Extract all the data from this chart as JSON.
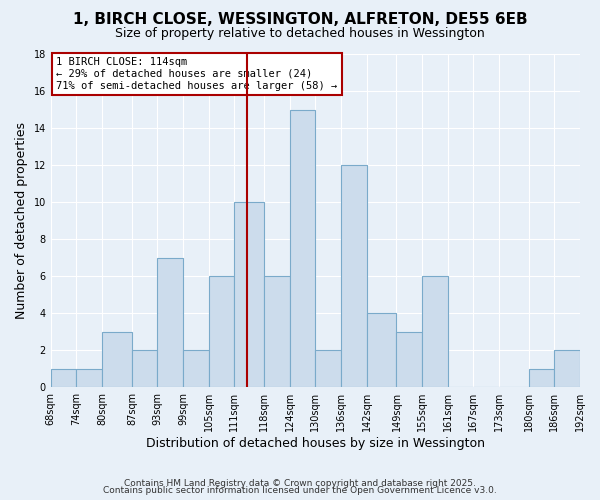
{
  "title": "1, BIRCH CLOSE, WESSINGTON, ALFRETON, DE55 6EB",
  "subtitle": "Size of property relative to detached houses in Wessington",
  "xlabel": "Distribution of detached houses by size in Wessington",
  "ylabel": "Number of detached properties",
  "bar_color": "#ccdcec",
  "bar_edgecolor": "#7aaaca",
  "background_color": "#e8f0f8",
  "grid_color": "#ffffff",
  "bins": [
    68,
    74,
    80,
    87,
    93,
    99,
    105,
    111,
    118,
    124,
    130,
    136,
    142,
    149,
    155,
    161,
    167,
    173,
    180,
    186,
    192
  ],
  "counts": [
    1,
    1,
    3,
    2,
    7,
    2,
    6,
    10,
    6,
    15,
    2,
    12,
    4,
    3,
    6,
    0,
    0,
    0,
    1,
    2
  ],
  "tick_labels": [
    "68sqm",
    "74sqm",
    "80sqm",
    "87sqm",
    "93sqm",
    "99sqm",
    "105sqm",
    "111sqm",
    "118sqm",
    "124sqm",
    "130sqm",
    "136sqm",
    "142sqm",
    "149sqm",
    "155sqm",
    "161sqm",
    "167sqm",
    "173sqm",
    "180sqm",
    "186sqm",
    "192sqm"
  ],
  "vline_x": 114,
  "vline_color": "#aa0000",
  "annotation_title": "1 BIRCH CLOSE: 114sqm",
  "annotation_line2": "← 29% of detached houses are smaller (24)",
  "annotation_line3": "71% of semi-detached houses are larger (58) →",
  "annotation_box_edgecolor": "#aa0000",
  "ylim": [
    0,
    18
  ],
  "yticks": [
    0,
    2,
    4,
    6,
    8,
    10,
    12,
    14,
    16,
    18
  ],
  "footnote1": "Contains HM Land Registry data © Crown copyright and database right 2025.",
  "footnote2": "Contains public sector information licensed under the Open Government Licence v3.0.",
  "title_fontsize": 11,
  "subtitle_fontsize": 9,
  "xlabel_fontsize": 9,
  "ylabel_fontsize": 9,
  "tick_fontsize": 7,
  "footnote_fontsize": 6.5
}
